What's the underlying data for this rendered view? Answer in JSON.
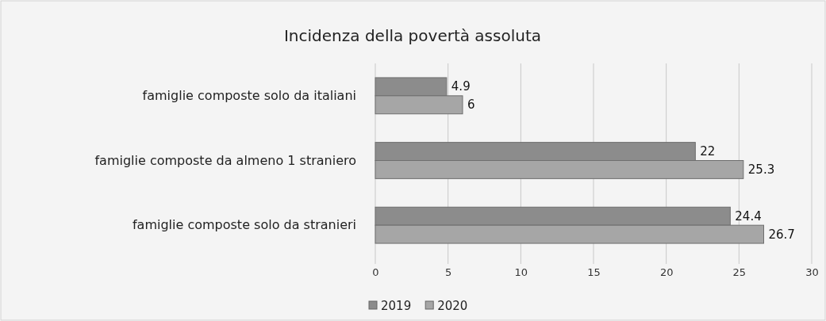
{
  "chart_data": {
    "type": "bar",
    "orientation": "horizontal",
    "title": "Incidenza della povertà assoluta",
    "categories": [
      "famiglie composte solo da italiani",
      "famiglie composte da almeno 1 straniero",
      "famiglie composte solo da stranieri"
    ],
    "series": [
      {
        "name": "2019",
        "color": "#8c8c8c",
        "values": [
          4.9,
          22,
          24.4
        ]
      },
      {
        "name": "2020",
        "color": "#a6a6a6",
        "values": [
          6,
          25.3,
          26.7
        ]
      }
    ],
    "xlim": [
      0,
      30
    ],
    "xticks": [
      0,
      5,
      10,
      15,
      20,
      25,
      30
    ],
    "grid": "x",
    "legend": "bottom",
    "data_labels": true
  }
}
